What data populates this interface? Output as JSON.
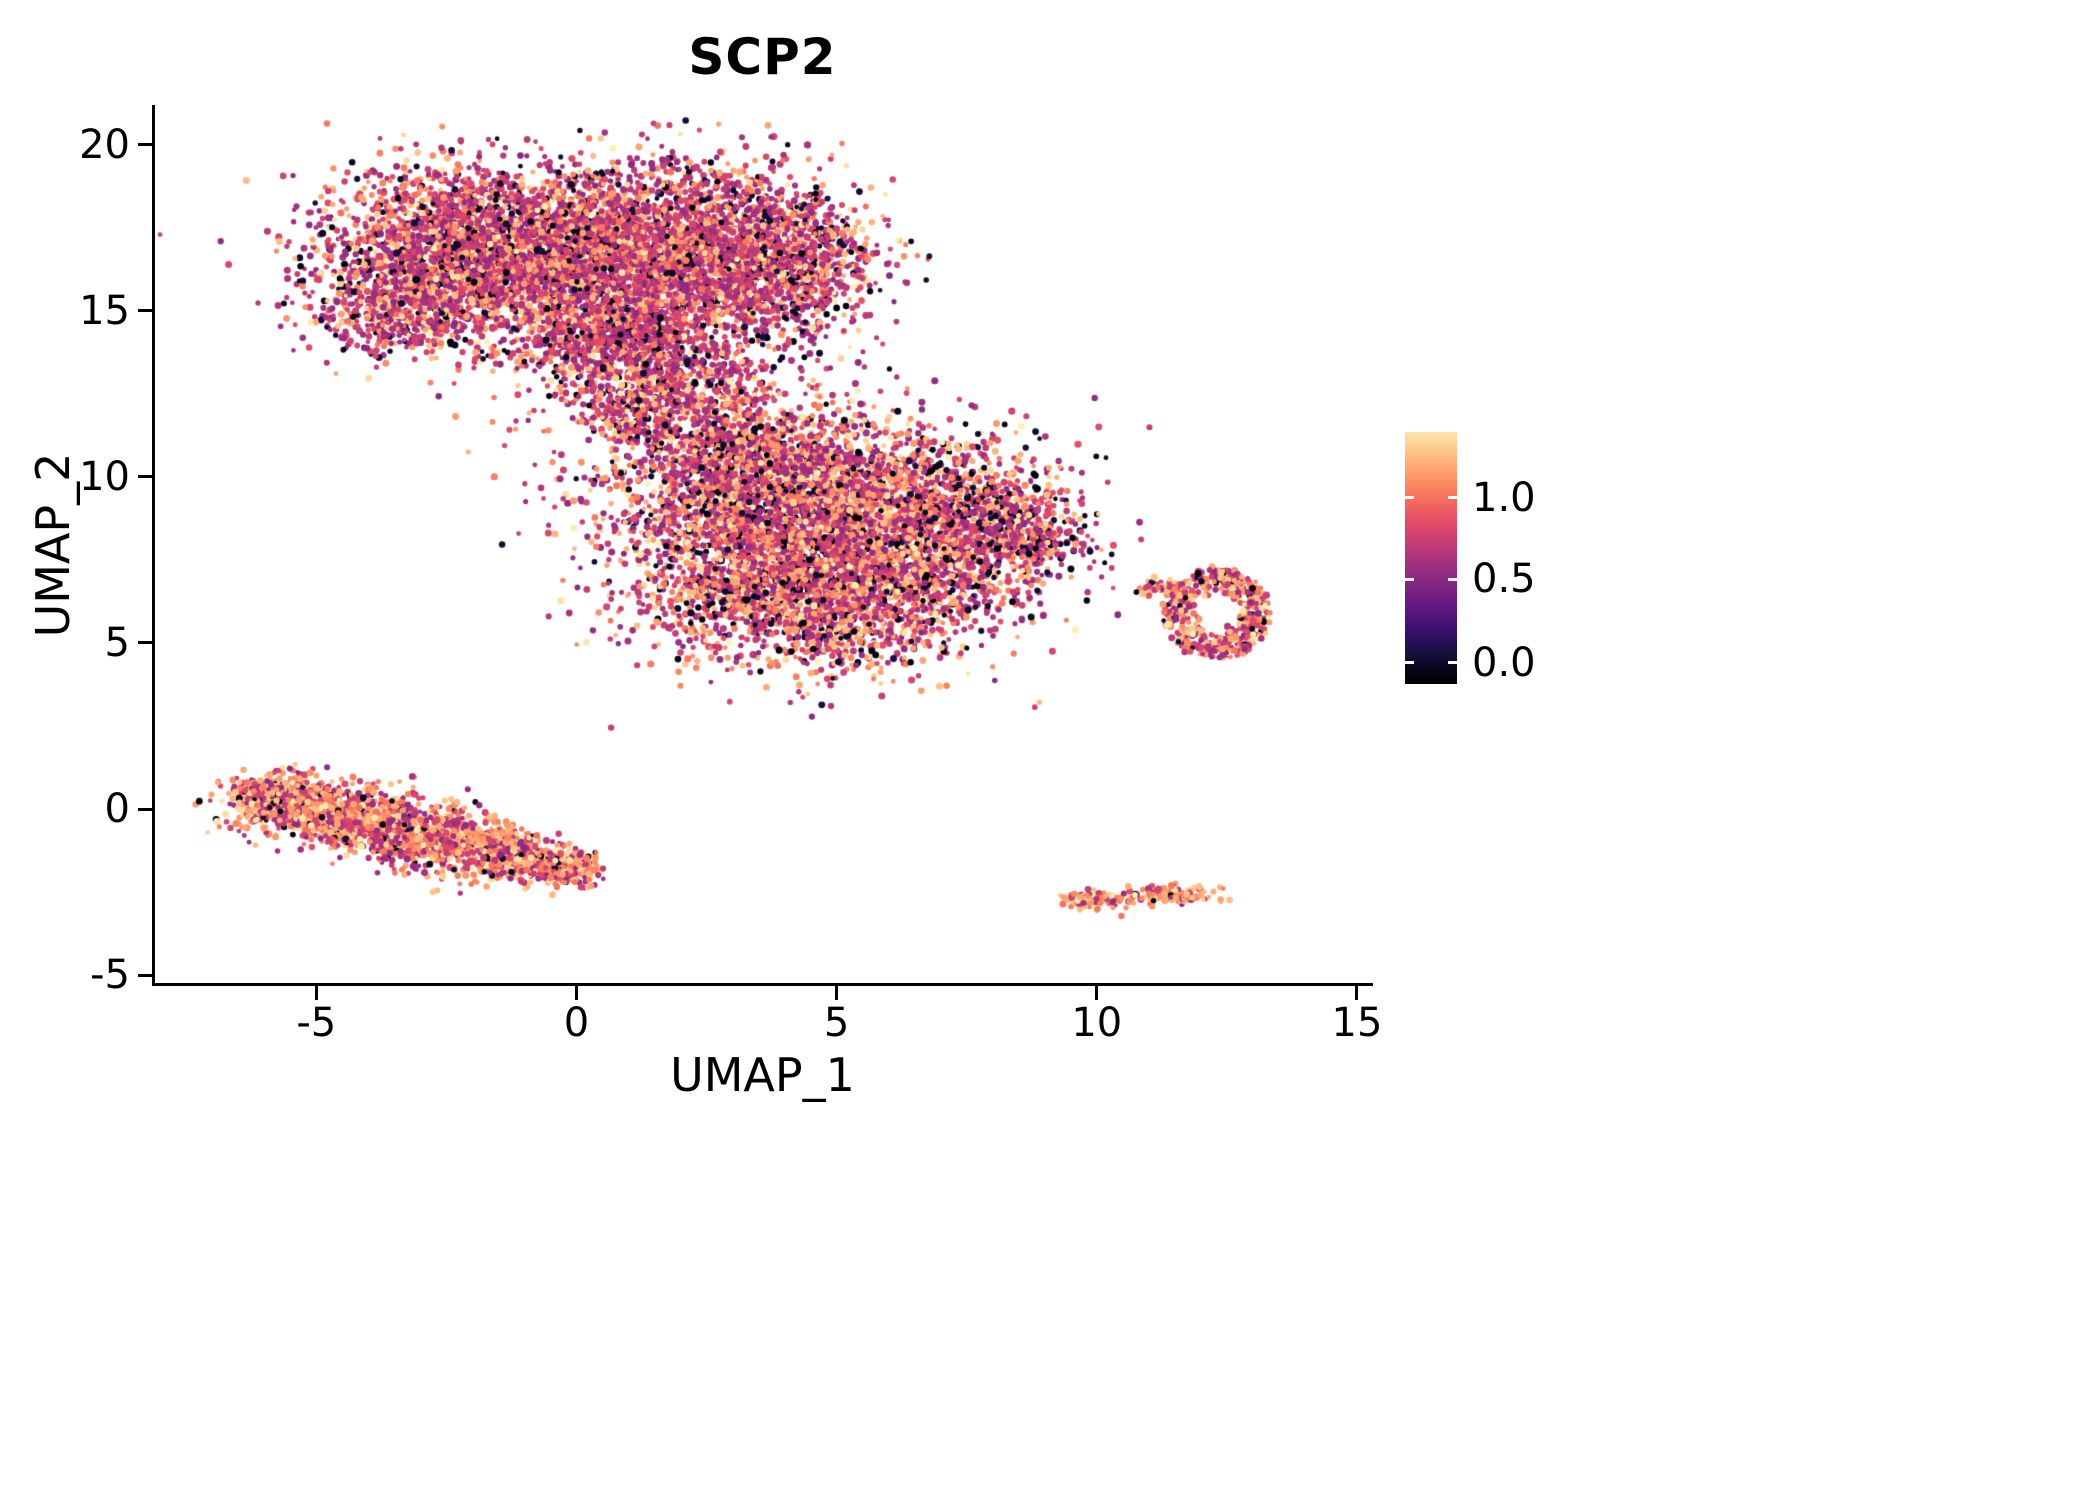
{
  "chart_data": {
    "type": "scatter",
    "title": "SCP2",
    "xlabel": "UMAP_1",
    "ylabel": "UMAP_2",
    "xlim": [
      -8.1,
      15.25
    ],
    "ylim": [
      -5.3,
      21.2
    ],
    "x_ticks": [
      -5,
      0,
      5,
      10,
      15
    ],
    "y_ticks": [
      -5,
      0,
      5,
      10,
      15,
      20
    ],
    "grid": false,
    "legend_position": "right",
    "colorbar": {
      "ticks": [
        {
          "label": "1.0",
          "pos": 0.26
        },
        {
          "label": "0.5",
          "pos": 0.585
        },
        {
          "label": "0.0",
          "pos": 0.915
        }
      ],
      "top_value": 0.95,
      "bottom_value": 0.0
    },
    "colormap": {
      "name": "magma",
      "stops": [
        [
          0.0,
          "#000004"
        ],
        [
          0.05,
          "#070517"
        ],
        [
          0.1,
          "#140e36"
        ],
        [
          0.15,
          "#231151"
        ],
        [
          0.2,
          "#3b0f70"
        ],
        [
          0.25,
          "#51127c"
        ],
        [
          0.3,
          "#641a80"
        ],
        [
          0.35,
          "#782281"
        ],
        [
          0.4,
          "#8c2981"
        ],
        [
          0.45,
          "#a02f7f"
        ],
        [
          0.5,
          "#b73779"
        ],
        [
          0.55,
          "#cb4071"
        ],
        [
          0.6,
          "#de4968"
        ],
        [
          0.65,
          "#eb5b61"
        ],
        [
          0.7,
          "#f7705c"
        ],
        [
          0.75,
          "#fa8861"
        ],
        [
          0.8,
          "#fe9f6d"
        ],
        [
          0.85,
          "#feb77f"
        ],
        [
          0.9,
          "#fecf92"
        ],
        [
          0.95,
          "#fde6a8"
        ],
        [
          1.0,
          "#fcfdbf"
        ]
      ]
    },
    "category_value_ranges": {
      "black": [
        0.0,
        0.12
      ],
      "magenta": [
        0.4,
        0.62
      ],
      "orange": [
        0.7,
        0.88
      ],
      "light": [
        0.88,
        0.98
      ]
    },
    "default_weights": {
      "black": 0.1,
      "magenta": 0.55,
      "orange": 0.28,
      "light": 0.07
    },
    "clusters": [
      {
        "name": "top-left",
        "type": "gauss",
        "cx": -1.7,
        "cy": 16.9,
        "sx": 1.5,
        "sy": 1.15,
        "rot": -15,
        "n": 3000,
        "weights": {
          "black": 0.1,
          "magenta": 0.6,
          "orange": 0.24,
          "light": 0.06
        }
      },
      {
        "name": "top-right",
        "type": "gauss",
        "cx": 1.9,
        "cy": 16.7,
        "sx": 1.5,
        "sy": 1.35,
        "rot": 0,
        "n": 3000,
        "weights": {
          "black": 0.1,
          "magenta": 0.6,
          "orange": 0.24,
          "light": 0.06
        }
      },
      {
        "name": "top-right-edge",
        "type": "gauss",
        "cx": 4.1,
        "cy": 16.4,
        "sx": 0.8,
        "sy": 1.1,
        "rot": 0,
        "n": 700,
        "weights": {
          "black": 0.12,
          "magenta": 0.6,
          "orange": 0.22,
          "light": 0.06
        }
      },
      {
        "name": "top-left-lower",
        "type": "gauss",
        "cx": -3.2,
        "cy": 15.2,
        "sx": 0.95,
        "sy": 0.75,
        "rot": 20,
        "n": 700,
        "weights": {
          "black": 0.12,
          "magenta": 0.58,
          "orange": 0.24,
          "light": 0.06
        }
      },
      {
        "name": "top-lower-lobe",
        "type": "gauss",
        "cx": 0.6,
        "cy": 14.0,
        "sx": 1.0,
        "sy": 0.85,
        "rot": 0,
        "n": 800,
        "weights": {
          "black": 0.1,
          "magenta": 0.62,
          "orange": 0.22,
          "light": 0.06
        }
      },
      {
        "name": "neck",
        "type": "gauss",
        "cx": 2.2,
        "cy": 12.4,
        "sx": 0.9,
        "sy": 1.0,
        "rot": 0,
        "n": 600,
        "weights": {
          "black": 0.12,
          "magenta": 0.62,
          "orange": 0.2,
          "light": 0.06
        }
      },
      {
        "name": "neck-left",
        "type": "gauss",
        "cx": 1.2,
        "cy": 11.8,
        "sx": 0.45,
        "sy": 0.45,
        "rot": 0,
        "n": 140,
        "weights": {
          "black": 0.12,
          "magenta": 0.62,
          "orange": 0.2,
          "light": 0.06
        }
      },
      {
        "name": "neck-sparse",
        "type": "gauss",
        "cx": 0.2,
        "cy": 12.5,
        "sx": 1.2,
        "sy": 0.7,
        "rot": 0,
        "n": 60,
        "weights": {
          "black": 0.15,
          "magenta": 0.6,
          "orange": 0.2,
          "light": 0.05
        }
      },
      {
        "name": "mid-upper",
        "type": "gauss",
        "cx": 4.3,
        "cy": 9.5,
        "sx": 1.8,
        "sy": 1.2,
        "rot": 0,
        "n": 2900,
        "weights": {
          "black": 0.11,
          "magenta": 0.52,
          "orange": 0.3,
          "light": 0.07
        }
      },
      {
        "name": "mid-lower",
        "type": "gauss",
        "cx": 4.7,
        "cy": 6.8,
        "sx": 1.75,
        "sy": 1.25,
        "rot": 0,
        "n": 2900,
        "weights": {
          "black": 0.11,
          "magenta": 0.5,
          "orange": 0.32,
          "light": 0.07
        }
      },
      {
        "name": "mid-right",
        "type": "gauss",
        "cx": 7.8,
        "cy": 8.6,
        "sx": 1.0,
        "sy": 0.95,
        "rot": 0,
        "n": 800,
        "weights": {
          "black": 0.18,
          "magenta": 0.52,
          "orange": 0.25,
          "light": 0.05
        }
      },
      {
        "name": "mid-right-tip",
        "type": "gauss",
        "cx": 8.8,
        "cy": 8.0,
        "sx": 0.4,
        "sy": 0.35,
        "rot": 0,
        "n": 120,
        "weights": {
          "black": 0.18,
          "magenta": 0.52,
          "orange": 0.25,
          "light": 0.05
        }
      },
      {
        "name": "mid-top-sparse",
        "type": "gauss",
        "cx": 3.3,
        "cy": 11.2,
        "sx": 0.8,
        "sy": 0.7,
        "rot": 0,
        "n": 260,
        "weights": {
          "black": 0.12,
          "magenta": 0.58,
          "orange": 0.24,
          "light": 0.06
        }
      },
      {
        "name": "right-ring",
        "type": "ring",
        "cx": 12.3,
        "cy": 5.9,
        "rx": 1.0,
        "ry": 1.35,
        "inner": 0.45,
        "n": 520,
        "weights": {
          "black": 0.08,
          "magenta": 0.44,
          "orange": 0.38,
          "light": 0.1
        }
      },
      {
        "name": "right-ring-spur",
        "type": "gauss",
        "cx": 11.2,
        "cy": 6.7,
        "sx": 0.25,
        "sy": 0.15,
        "rot": 0,
        "n": 45,
        "weights": {
          "black": 0.08,
          "magenta": 0.44,
          "orange": 0.38,
          "light": 0.1
        }
      },
      {
        "name": "left-band",
        "type": "band",
        "x0": -6.25,
        "y0": 0.45,
        "x1": 0.2,
        "y1": -1.85,
        "sigma": 0.42,
        "n": 2300,
        "weights": {
          "black": 0.06,
          "magenta": 0.36,
          "orange": 0.46,
          "light": 0.12
        }
      },
      {
        "name": "left-band-head",
        "type": "gauss",
        "cx": -5.7,
        "cy": 0.15,
        "sx": 0.55,
        "sy": 0.45,
        "rot": -15,
        "n": 450,
        "weights": {
          "black": 0.06,
          "magenta": 0.4,
          "orange": 0.42,
          "light": 0.12
        }
      },
      {
        "name": "bottom-dot-left",
        "type": "gauss",
        "cx": 9.95,
        "cy": -2.72,
        "sx": 0.28,
        "sy": 0.13,
        "rot": 0,
        "n": 110,
        "weights": {
          "black": 0.04,
          "magenta": 0.28,
          "orange": 0.56,
          "light": 0.12
        }
      },
      {
        "name": "bottom-dot-mid",
        "type": "gauss",
        "cx": 10.7,
        "cy": -2.7,
        "sx": 0.05,
        "sy": 0.05,
        "rot": 0,
        "n": 4,
        "weights": {
          "black": 0.04,
          "magenta": 0.28,
          "orange": 0.56,
          "light": 0.12
        }
      },
      {
        "name": "bottom-dot-right",
        "type": "gauss",
        "cx": 11.5,
        "cy": -2.6,
        "sx": 0.42,
        "sy": 0.13,
        "rot": 0,
        "n": 140,
        "weights": {
          "black": 0.04,
          "magenta": 0.28,
          "orange": 0.56,
          "light": 0.12
        }
      },
      {
        "name": "lone-dot",
        "type": "gauss",
        "cx": 6.65,
        "cy": 3.6,
        "sx": 0.03,
        "sy": 0.03,
        "rot": 0,
        "n": 1,
        "weights": {
          "black": 0.0,
          "magenta": 0.0,
          "orange": 1.0,
          "light": 0.0
        }
      }
    ]
  }
}
